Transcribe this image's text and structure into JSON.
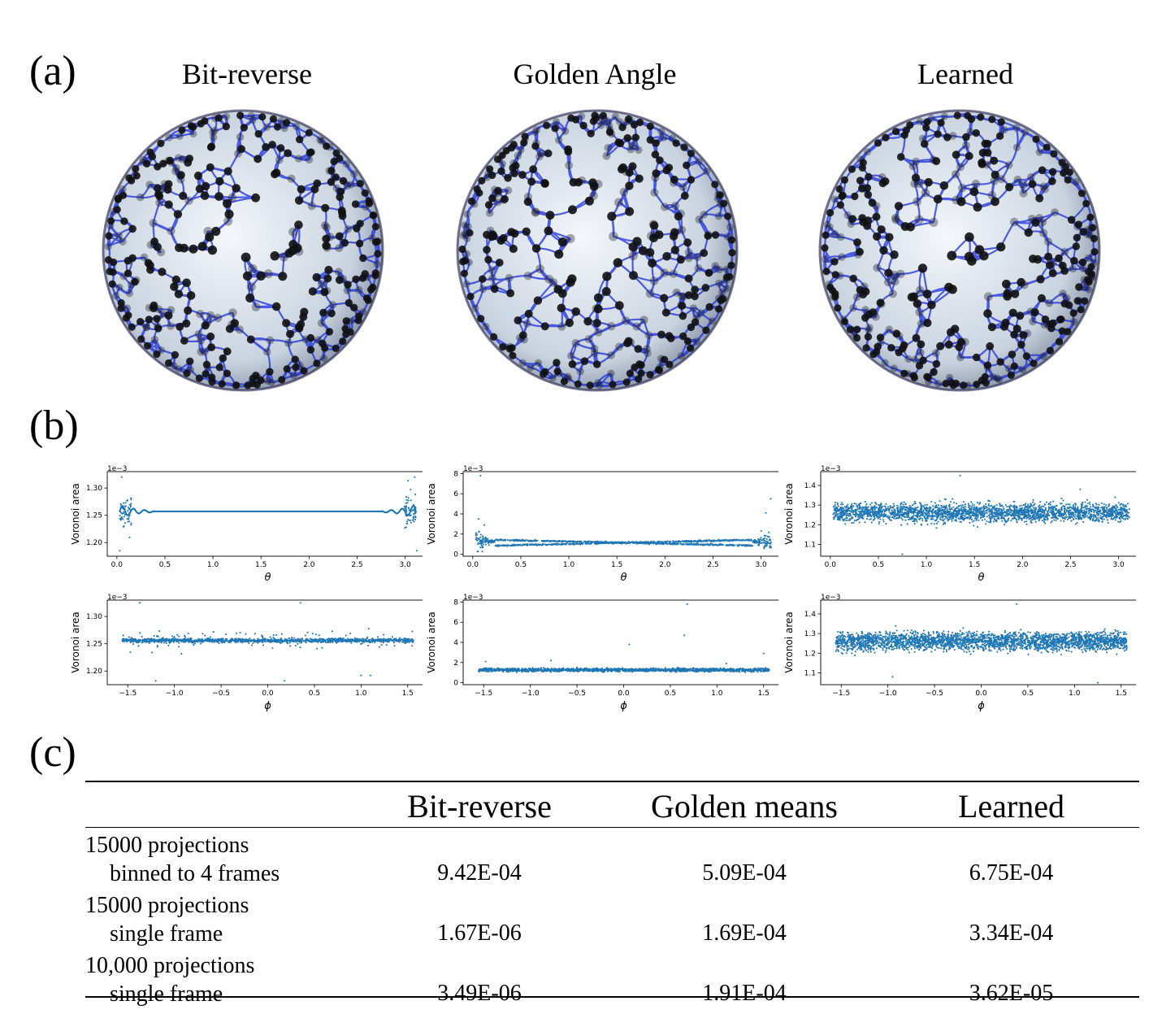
{
  "panels": {
    "a": "(a)",
    "b": "(b)",
    "c": "(c)"
  },
  "sphere_titles": [
    "Bit-reverse",
    "Golden Angle",
    "Learned"
  ],
  "chart_data": [
    {
      "type": "scatter",
      "method": "Bit-reverse",
      "xlabel": "θ",
      "ylabel": "Voronoi area",
      "exponent": "1e−3",
      "xlim": [
        -0.1,
        3.24
      ],
      "ylim": [
        1.175,
        1.33
      ],
      "xticks": [
        0.0,
        0.5,
        1.0,
        1.5,
        2.0,
        2.5,
        3.0
      ],
      "xtick_labels": [
        "0.0",
        "0.5",
        "1.0",
        "1.5",
        "2.0",
        "2.5",
        "3.0"
      ],
      "yticks": [
        1.2,
        1.25,
        1.3
      ],
      "ytick_labels": [
        "1.20",
        "1.25",
        "1.30"
      ],
      "pattern": "theta_bitreverse",
      "band_center": 1.257
    },
    {
      "type": "scatter",
      "method": "Golden Angle",
      "xlabel": "θ",
      "ylabel": "Voronoi area",
      "exponent": "1e−3",
      "xlim": [
        -0.1,
        3.24
      ],
      "ylim": [
        -0.2,
        8.2
      ],
      "xticks": [
        0.0,
        0.5,
        1.0,
        1.5,
        2.0,
        2.5,
        3.0
      ],
      "xtick_labels": [
        "0.0",
        "0.5",
        "1.0",
        "1.5",
        "2.0",
        "2.5",
        "3.0"
      ],
      "yticks": [
        0,
        2,
        4,
        6,
        8
      ],
      "ytick_labels": [
        "0",
        "2",
        "4",
        "6",
        "8"
      ],
      "pattern": "theta_golden",
      "band_center": 1.26
    },
    {
      "type": "scatter",
      "method": "Learned",
      "xlabel": "θ",
      "ylabel": "Voronoi area",
      "exponent": "1e−3",
      "xlim": [
        -0.1,
        3.24
      ],
      "ylim": [
        1.04,
        1.47
      ],
      "xticks": [
        0.0,
        0.5,
        1.0,
        1.5,
        2.0,
        2.5,
        3.0
      ],
      "xtick_labels": [
        "0.0",
        "0.5",
        "1.0",
        "1.5",
        "2.0",
        "2.5",
        "3.0"
      ],
      "yticks": [
        1.1,
        1.2,
        1.3,
        1.4
      ],
      "ytick_labels": [
        "1.1",
        "1.2",
        "1.3",
        "1.4"
      ],
      "pattern": "theta_learned",
      "band_center": 1.26
    },
    {
      "type": "scatter",
      "method": "Bit-reverse",
      "xlabel": "ϕ",
      "ylabel": "Voronoi area",
      "exponent": "1e−3",
      "xlim": [
        -1.72,
        1.72
      ],
      "ylim": [
        1.175,
        1.33
      ],
      "xticks": [
        -1.5,
        -1.0,
        -0.5,
        0.0,
        0.5,
        1.0,
        1.5
      ],
      "xtick_labels": [
        "−1.5",
        "−1.0",
        "−0.5",
        "0.0",
        "0.5",
        "1.0",
        "1.5"
      ],
      "yticks": [
        1.2,
        1.25,
        1.3
      ],
      "ytick_labels": [
        "1.20",
        "1.25",
        "1.30"
      ],
      "pattern": "phi_bitreverse",
      "band_center": 1.256
    },
    {
      "type": "scatter",
      "method": "Golden Angle",
      "xlabel": "ϕ",
      "ylabel": "Voronoi area",
      "exponent": "1e−3",
      "xlim": [
        -1.72,
        1.72
      ],
      "ylim": [
        -0.2,
        8.2
      ],
      "xticks": [
        -1.5,
        -1.0,
        -0.5,
        0.0,
        0.5,
        1.0,
        1.5
      ],
      "xtick_labels": [
        "−1.5",
        "−1.0",
        "−0.5",
        "0.0",
        "0.5",
        "1.0",
        "1.5"
      ],
      "yticks": [
        0,
        2,
        4,
        6,
        8
      ],
      "ytick_labels": [
        "0",
        "2",
        "4",
        "6",
        "8"
      ],
      "pattern": "phi_golden",
      "band_center": 1.26
    },
    {
      "type": "scatter",
      "method": "Learned",
      "xlabel": "ϕ",
      "ylabel": "Voronoi area",
      "exponent": "1e−3",
      "xlim": [
        -1.72,
        1.72
      ],
      "ylim": [
        1.04,
        1.47
      ],
      "xticks": [
        -1.5,
        -1.0,
        -0.5,
        0.0,
        0.5,
        1.0,
        1.5
      ],
      "xtick_labels": [
        "−1.5",
        "−1.0",
        "−0.5",
        "0.0",
        "0.5",
        "1.0",
        "1.5"
      ],
      "yticks": [
        1.1,
        1.2,
        1.3,
        1.4
      ],
      "ytick_labels": [
        "1.1",
        "1.2",
        "1.3",
        "1.4"
      ],
      "pattern": "phi_learned",
      "band_center": 1.26
    }
  ],
  "table": {
    "headers": [
      "",
      "Bit-reverse",
      "Golden means",
      "Learned"
    ],
    "rows": [
      {
        "label1": "15000 projections",
        "label2": "binned to 4 frames",
        "values": [
          "9.42E-04",
          "5.09E-04",
          "6.75E-04"
        ]
      },
      {
        "label1": "15000 projections",
        "label2": "single frame",
        "values": [
          "1.67E-06",
          "1.69E-04",
          "3.34E-04"
        ]
      },
      {
        "label1": "10,000 projections",
        "label2": "single frame",
        "values": [
          "3.49E-06",
          "1.91E-04",
          "3.62E-05"
        ]
      }
    ]
  },
  "colors": {
    "point": "#1f77b4",
    "sphere_line": "#1a2fe0",
    "sphere_dot": "#111111"
  }
}
